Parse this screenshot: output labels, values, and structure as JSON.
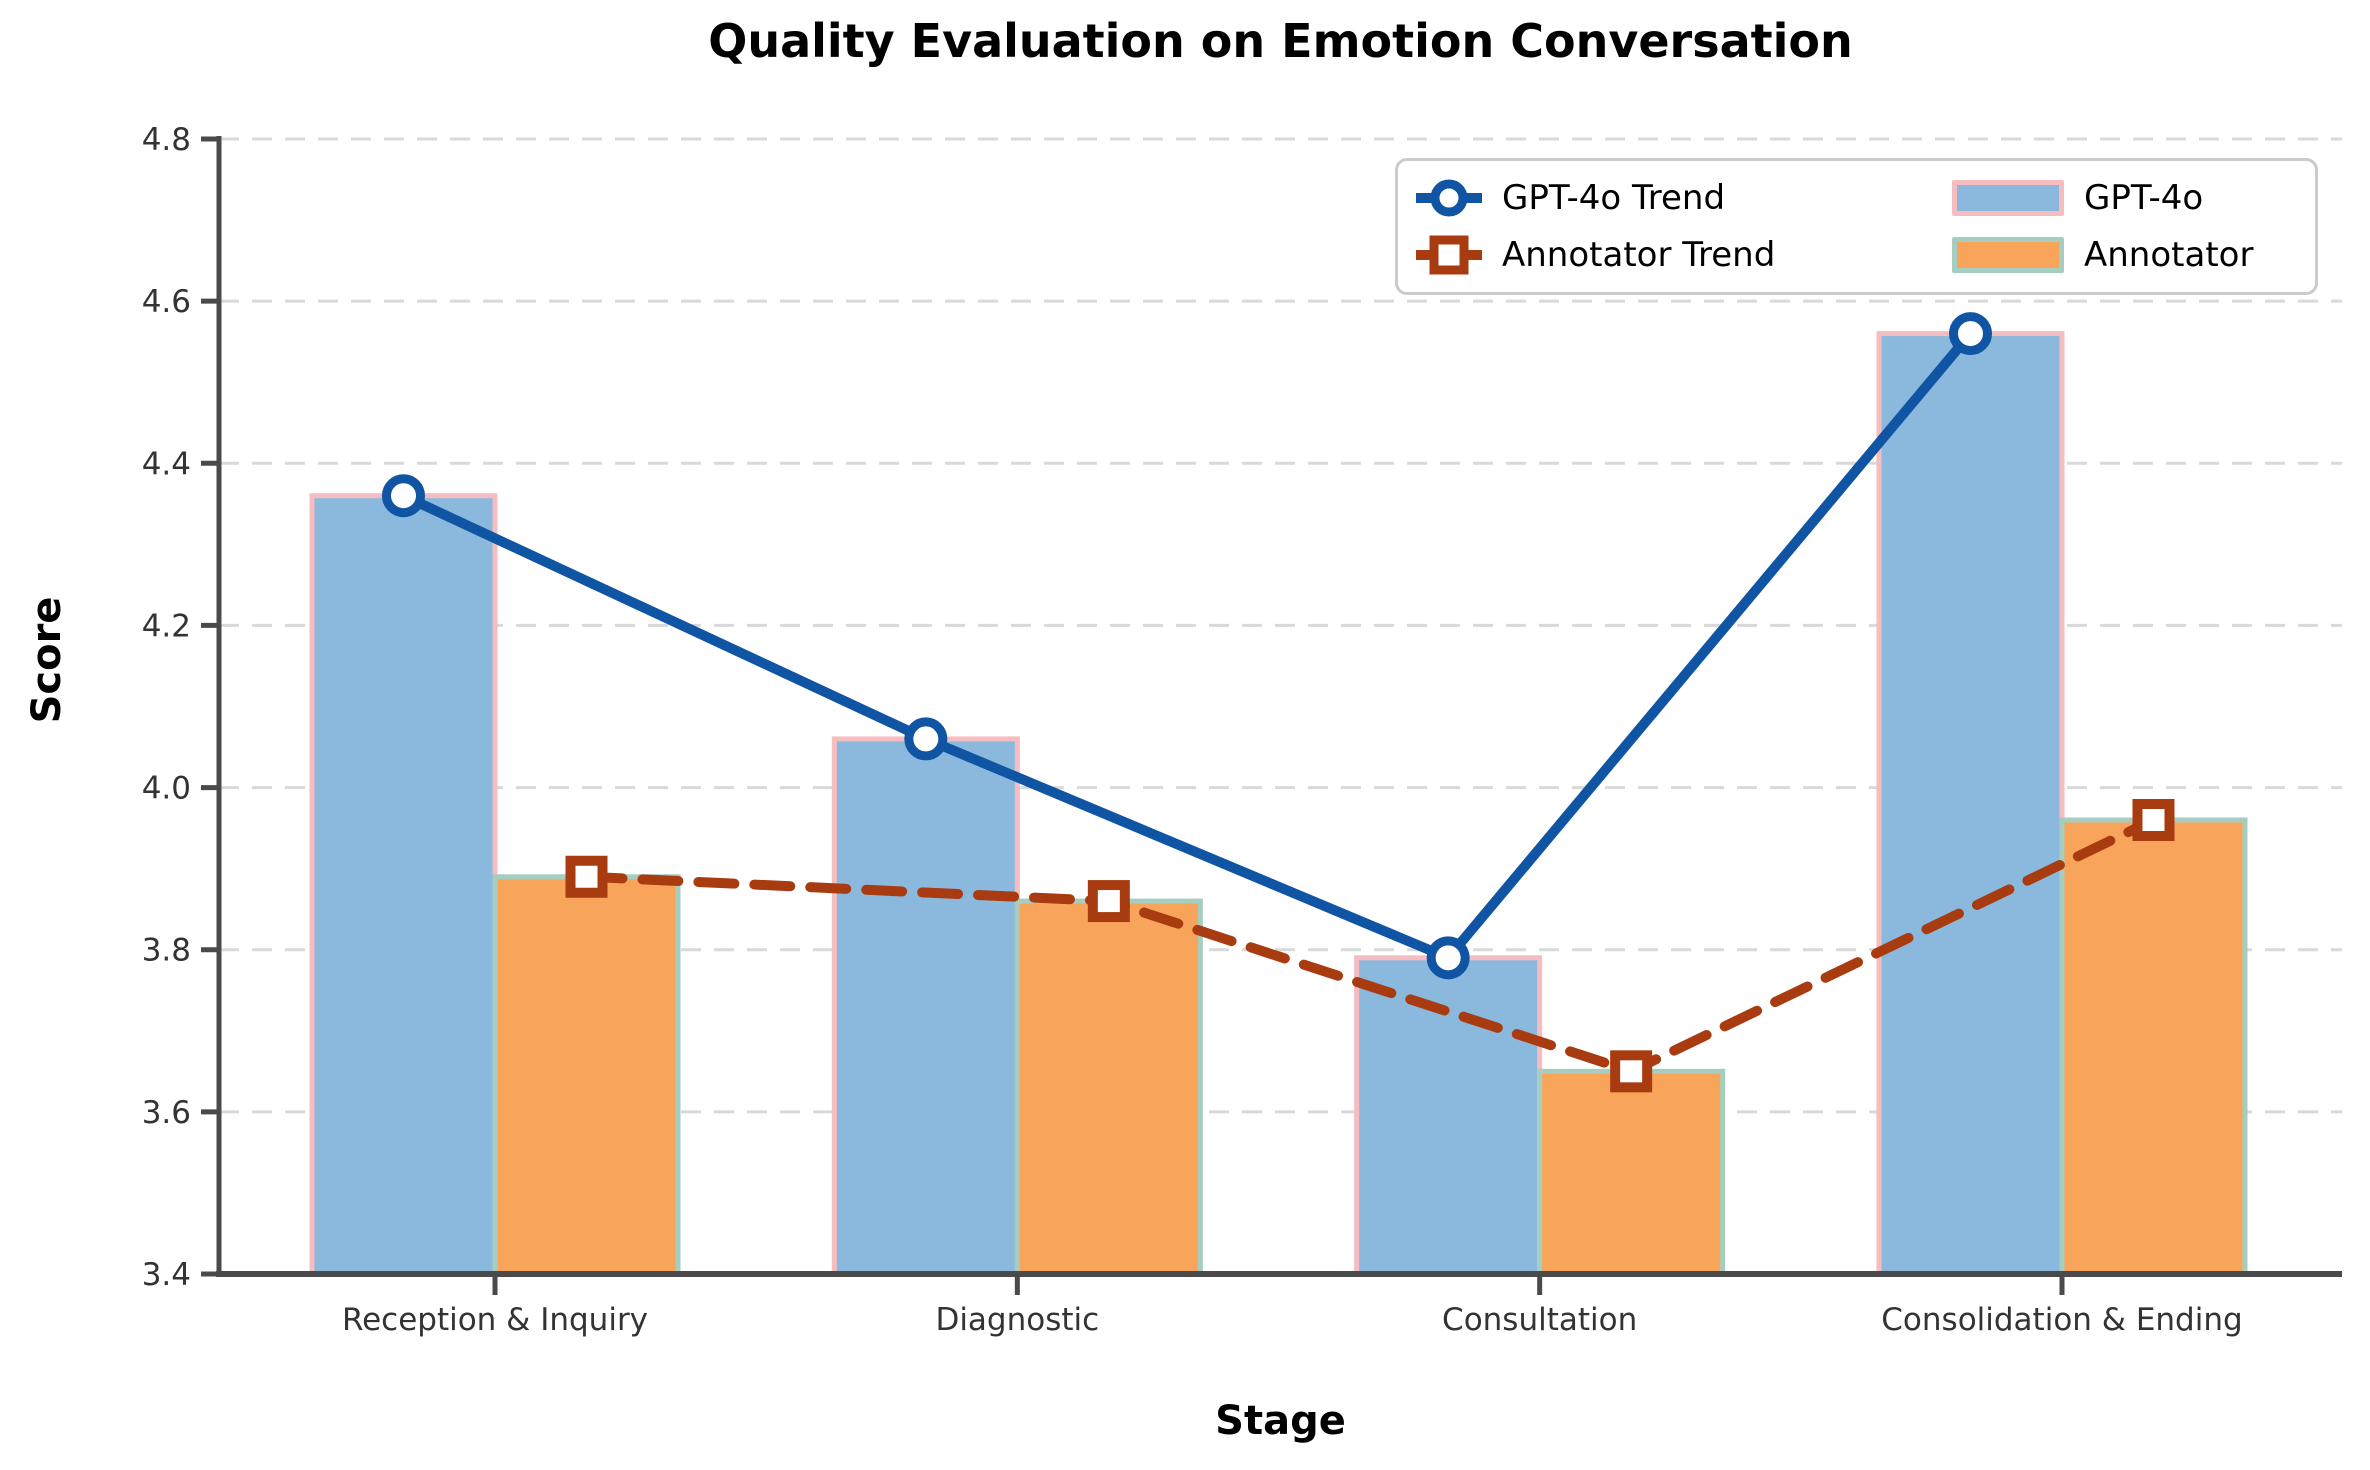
{
  "title": "Quality Evaluation on Emotion Conversation",
  "chart_data": {
    "type": "bar",
    "title": "Quality Evaluation on Emotion Conversation",
    "xlabel": "Stage",
    "ylabel": "Score",
    "ylim": [
      3.4,
      4.8
    ],
    "ytick_labels": [
      "3.4",
      "3.6",
      "3.8",
      "4.0",
      "4.2",
      "4.4",
      "4.6",
      "4.8"
    ],
    "categories": [
      "Reception & Inquiry",
      "Diagnostic",
      "Consultation",
      "Consolidation & Ending"
    ],
    "series": [
      {
        "name": "GPT-4o",
        "kind": "bar",
        "values": [
          4.36,
          4.06,
          3.79,
          4.56
        ],
        "fill": "#8BB9DD",
        "edge": "#F5BDC0"
      },
      {
        "name": "Annotator",
        "kind": "bar",
        "values": [
          3.89,
          3.86,
          3.65,
          3.96
        ],
        "fill": "#F9A45B",
        "edge": "#A5CEC0"
      },
      {
        "name": "GPT-4o Trend",
        "kind": "line",
        "style": "solid",
        "marker": "circle",
        "values": [
          4.36,
          4.06,
          3.79,
          4.56
        ],
        "color": "#1054A4"
      },
      {
        "name": "Annotator Trend",
        "kind": "line",
        "style": "dashed",
        "marker": "square",
        "values": [
          3.89,
          3.86,
          3.65,
          3.96
        ],
        "color": "#A83B10"
      }
    ],
    "grid": "horizontal dashed",
    "grid_color": "#D9D9D9",
    "spine_color": "#4A4A4A",
    "tick_label_color": "#333333",
    "legend_position": "upper right"
  }
}
